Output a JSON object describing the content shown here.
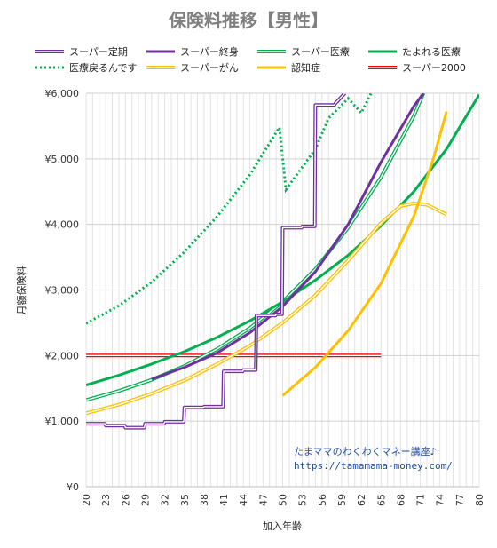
{
  "chart_data": {
    "type": "line",
    "title": "保険料推移【男性】",
    "xlabel": "加入年齢",
    "ylabel": "月額保険料",
    "xlim": [
      20,
      80
    ],
    "ylim": [
      0,
      6000
    ],
    "x_ticks": [
      20,
      23,
      26,
      29,
      32,
      35,
      38,
      41,
      44,
      47,
      50,
      53,
      56,
      59,
      62,
      65,
      68,
      71,
      74,
      77,
      80
    ],
    "x_tick_labels": [
      "20",
      "23",
      "26",
      "29",
      "32",
      "35",
      "38",
      "41",
      "44",
      "47",
      "50",
      "53",
      "56",
      "59",
      "62",
      "65",
      "68",
      "71",
      "74",
      "77",
      "80"
    ],
    "y_ticks": [
      0,
      1000,
      2000,
      3000,
      4000,
      5000,
      6000
    ],
    "y_tick_labels": [
      "¥0",
      "¥1,000",
      "¥2,000",
      "¥3,000",
      "¥4,000",
      "¥5,000",
      "¥6,000"
    ],
    "grid": true,
    "legend_placement": "top",
    "watermark": {
      "line1": "たまママのわくわくマネー講座♪",
      "line2": "https://tamamama-money.com/"
    },
    "series": [
      {
        "name": "スーパー定期",
        "color": "#7030a0",
        "style": "double",
        "x": [
          20,
          22.9,
          23,
          25.9,
          26,
          28.9,
          29,
          31.9,
          32,
          34.9,
          35,
          37.9,
          38,
          40.9,
          41,
          43.9,
          44,
          45.9,
          46,
          48.9,
          49,
          49.9,
          50,
          52.9,
          53,
          54.9,
          55,
          57.9,
          58,
          59.5
        ],
        "y": [
          960,
          960,
          930,
          930,
          900,
          900,
          960,
          960,
          990,
          990,
          1210,
          1210,
          1220,
          1220,
          1760,
          1760,
          1780,
          1780,
          2610,
          2610,
          2630,
          2630,
          3950,
          3950,
          3970,
          3970,
          5820,
          5820,
          5840,
          6000
        ]
      },
      {
        "name": "スーパー終身",
        "color": "#7030a0",
        "style": "thick",
        "x": [
          30,
          35,
          40,
          45,
          50,
          55,
          60,
          65,
          70,
          71.5
        ],
        "y": [
          1640,
          1820,
          2040,
          2350,
          2750,
          3280,
          4000,
          4950,
          5800,
          6000
        ]
      },
      {
        "name": "スーパー医療",
        "color": "#00b050",
        "style": "double",
        "x": [
          20,
          25,
          30,
          35,
          40,
          45,
          50,
          55,
          60,
          65,
          70,
          71.5
        ],
        "y": [
          1320,
          1460,
          1630,
          1840,
          2100,
          2420,
          2820,
          3320,
          3950,
          4720,
          5650,
          6000
        ]
      },
      {
        "name": "たよれる医療",
        "color": "#00b050",
        "style": "thick",
        "x": [
          20,
          25,
          30,
          35,
          40,
          45,
          50,
          55,
          60,
          65,
          70,
          75,
          80
        ],
        "y": [
          1550,
          1700,
          1870,
          2060,
          2280,
          2530,
          2820,
          3150,
          3530,
          3980,
          4500,
          5150,
          5980
        ]
      },
      {
        "name": "医療戻るんです",
        "color": "#00b050",
        "style": "dotted",
        "x": [
          20,
          25,
          30,
          35,
          40,
          45,
          49.5,
          50.5,
          55,
          57,
          60,
          62,
          63.5
        ],
        "y": [
          2490,
          2760,
          3120,
          3580,
          4120,
          4760,
          5480,
          4530,
          5150,
          5620,
          5920,
          5700,
          6000
        ]
      },
      {
        "name": "スーパーがん",
        "color": "#ffc000",
        "style": "double",
        "x": [
          20,
          25,
          30,
          35,
          40,
          45,
          50,
          55,
          60,
          65,
          68,
          70,
          72,
          75
        ],
        "y": [
          1120,
          1250,
          1420,
          1620,
          1870,
          2150,
          2500,
          2920,
          3450,
          4020,
          4280,
          4320,
          4300,
          4150
        ]
      },
      {
        "name": "認知症",
        "color": "#ffc000",
        "style": "thick",
        "x": [
          50,
          55,
          60,
          65,
          70,
          73,
          75
        ],
        "y": [
          1390,
          1820,
          2380,
          3100,
          4120,
          5000,
          5720
        ]
      },
      {
        "name": "スーパー2000",
        "color": "#ff0000",
        "style": "double",
        "x": [
          20,
          65
        ],
        "y": [
          2000,
          2000
        ]
      }
    ]
  }
}
